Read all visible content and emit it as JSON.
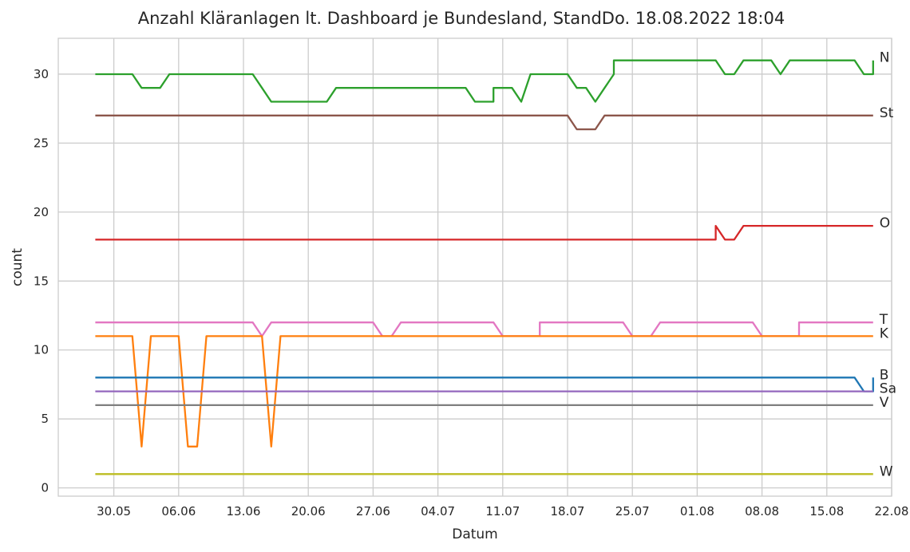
{
  "chart_data": {
    "type": "line",
    "title": "Anzahl Kläranlagen lt. Dashboard je Bundesland, StandDo. 18.08.2022 18:04",
    "xlabel": "Datum",
    "ylabel": "count",
    "x_range": [
      "2022-05-24",
      "2022-08-22"
    ],
    "ylim": [
      -0.6,
      32.6
    ],
    "grid": true,
    "x_ticks": [
      {
        "date": "2022-05-30",
        "label": "30.05"
      },
      {
        "date": "2022-06-06",
        "label": "06.06"
      },
      {
        "date": "2022-06-13",
        "label": "13.06"
      },
      {
        "date": "2022-06-20",
        "label": "20.06"
      },
      {
        "date": "2022-06-27",
        "label": "27.06"
      },
      {
        "date": "2022-07-04",
        "label": "04.07"
      },
      {
        "date": "2022-07-11",
        "label": "11.07"
      },
      {
        "date": "2022-07-18",
        "label": "18.07"
      },
      {
        "date": "2022-07-25",
        "label": "25.07"
      },
      {
        "date": "2022-08-01",
        "label": "01.08"
      },
      {
        "date": "2022-08-08",
        "label": "08.08"
      },
      {
        "date": "2022-08-15",
        "label": "15.08"
      },
      {
        "date": "2022-08-22",
        "label": "22.08"
      }
    ],
    "y_ticks": [
      0,
      5,
      10,
      15,
      20,
      25,
      30
    ],
    "series": [
      {
        "name": "N",
        "color": "#2ca02c",
        "points": [
          [
            "2022-05-28",
            30
          ],
          [
            "2022-06-01",
            30
          ],
          [
            "2022-06-02",
            29
          ],
          [
            "2022-06-04",
            29
          ],
          [
            "2022-06-05",
            30
          ],
          [
            "2022-06-14",
            30
          ],
          [
            "2022-06-15",
            29
          ],
          [
            "2022-06-16",
            28
          ],
          [
            "2022-06-22",
            28
          ],
          [
            "2022-06-23",
            29
          ],
          [
            "2022-07-07",
            29
          ],
          [
            "2022-07-08",
            28
          ],
          [
            "2022-07-10",
            28
          ],
          [
            "2022-07-10",
            29
          ],
          [
            "2022-07-12",
            29
          ],
          [
            "2022-07-13",
            28
          ],
          [
            "2022-07-14",
            30
          ],
          [
            "2022-07-18",
            30
          ],
          [
            "2022-07-19",
            29
          ],
          [
            "2022-07-20",
            29
          ],
          [
            "2022-07-21",
            28
          ],
          [
            "2022-07-22",
            29
          ],
          [
            "2022-07-23",
            30
          ],
          [
            "2022-07-23",
            31
          ],
          [
            "2022-08-03",
            31
          ],
          [
            "2022-08-04",
            30
          ],
          [
            "2022-08-05",
            30
          ],
          [
            "2022-08-06",
            31
          ],
          [
            "2022-08-09",
            31
          ],
          [
            "2022-08-10",
            30
          ],
          [
            "2022-08-11",
            31
          ],
          [
            "2022-08-18",
            31
          ],
          [
            "2022-08-19",
            30
          ],
          [
            "2022-08-20",
            30
          ],
          [
            "2022-08-20",
            31
          ]
        ]
      },
      {
        "name": "St",
        "color": "#8c564b",
        "points": [
          [
            "2022-05-28",
            27
          ],
          [
            "2022-07-18",
            27
          ],
          [
            "2022-07-19",
            26
          ],
          [
            "2022-07-21",
            26
          ],
          [
            "2022-07-22",
            27
          ],
          [
            "2022-08-20",
            27
          ]
        ]
      },
      {
        "name": "O",
        "color": "#d62728",
        "points": [
          [
            "2022-05-28",
            18
          ],
          [
            "2022-08-03",
            18
          ],
          [
            "2022-08-03",
            19
          ],
          [
            "2022-08-04",
            18
          ],
          [
            "2022-08-05",
            18
          ],
          [
            "2022-08-06",
            19
          ],
          [
            "2022-08-20",
            19
          ]
        ]
      },
      {
        "name": "T",
        "color": "#e377c2",
        "points": [
          [
            "2022-05-28",
            12
          ],
          [
            "2022-06-14",
            12
          ],
          [
            "2022-06-15",
            11
          ],
          [
            "2022-06-16",
            12
          ],
          [
            "2022-06-27",
            12
          ],
          [
            "2022-06-28",
            11
          ],
          [
            "2022-06-29",
            11
          ],
          [
            "2022-06-30",
            12
          ],
          [
            "2022-07-10",
            12
          ],
          [
            "2022-07-11",
            11
          ],
          [
            "2022-07-15",
            11
          ],
          [
            "2022-07-15",
            12
          ],
          [
            "2022-07-24",
            12
          ],
          [
            "2022-07-25",
            11
          ],
          [
            "2022-07-27",
            11
          ],
          [
            "2022-07-28",
            12
          ],
          [
            "2022-08-07",
            12
          ],
          [
            "2022-08-08",
            11
          ],
          [
            "2022-08-12",
            11
          ],
          [
            "2022-08-12",
            12
          ],
          [
            "2022-08-20",
            12
          ]
        ]
      },
      {
        "name": "K",
        "color": "#ff7f0e",
        "points": [
          [
            "2022-05-28",
            11
          ],
          [
            "2022-06-01",
            11
          ],
          [
            "2022-06-02",
            3
          ],
          [
            "2022-06-03",
            11
          ],
          [
            "2022-06-06",
            11
          ],
          [
            "2022-06-07",
            3
          ],
          [
            "2022-06-08",
            3
          ],
          [
            "2022-06-09",
            11
          ],
          [
            "2022-06-15",
            11
          ],
          [
            "2022-06-16",
            3
          ],
          [
            "2022-06-17",
            11
          ],
          [
            "2022-08-20",
            11
          ]
        ]
      },
      {
        "name": "B",
        "color": "#1f77b4",
        "points": [
          [
            "2022-05-28",
            8
          ],
          [
            "2022-08-18",
            8
          ],
          [
            "2022-08-19",
            7
          ],
          [
            "2022-08-20",
            7
          ],
          [
            "2022-08-20",
            8
          ]
        ]
      },
      {
        "name": "Sa",
        "color": "#9467bd",
        "points": [
          [
            "2022-05-28",
            7
          ],
          [
            "2022-08-20",
            7
          ]
        ]
      },
      {
        "name": "V",
        "color": "#7f7f7f",
        "points": [
          [
            "2022-05-28",
            6
          ],
          [
            "2022-08-20",
            6
          ]
        ]
      },
      {
        "name": "W",
        "color": "#bcbd22",
        "points": [
          [
            "2022-05-28",
            1
          ],
          [
            "2022-08-20",
            1
          ]
        ]
      }
    ]
  }
}
